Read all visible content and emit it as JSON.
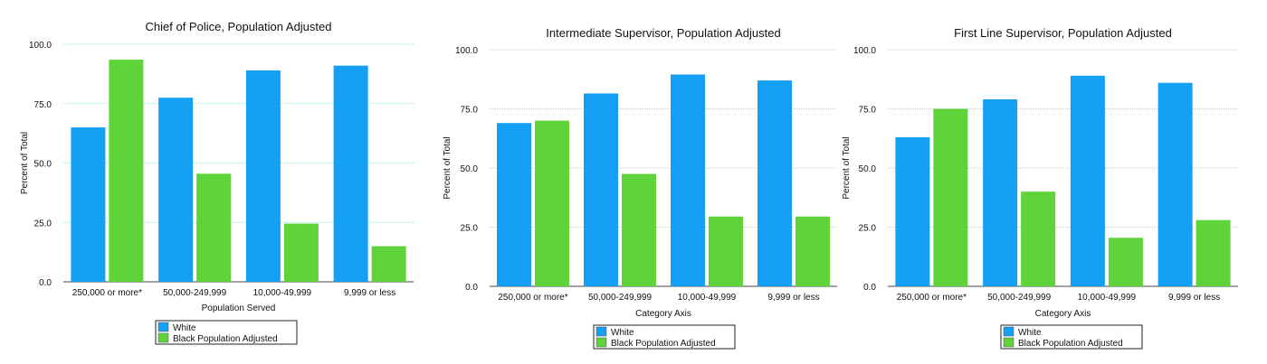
{
  "colors": {
    "white_series": "#14a0f5",
    "black_series": "#5fd43a",
    "grid": "#a8d8d0"
  },
  "chart_data": [
    {
      "type": "bar",
      "title": "Chief of Police, Population Adjusted",
      "xlabel": "Population Served",
      "ylabel": "Percent of Total",
      "ylim": [
        0,
        100
      ],
      "yticks": [
        "0.0",
        "25.0",
        "50.0",
        "75.0",
        "100.0"
      ],
      "categories": [
        "250,000 or more*",
        "50,000-249,999",
        "10,000-49,999",
        "9,999 or less"
      ],
      "series": [
        {
          "name": "White",
          "values": [
            65,
            77.5,
            89,
            91
          ]
        },
        {
          "name": "Black Population Adjusted",
          "values": [
            93.5,
            45.5,
            24.5,
            15
          ]
        }
      ],
      "grid": true,
      "legend": "bottom-center"
    },
    {
      "type": "bar",
      "title": "Intermediate Supervisor, Population Adjusted",
      "xlabel": "Category Axis",
      "ylabel": "Percent of Total",
      "ylim": [
        0,
        100
      ],
      "yticks": [
        "0.0",
        "25.0",
        "50.0",
        "75.0",
        "100.0"
      ],
      "categories": [
        "250,000 or more*",
        "50,000-249,999",
        "10,000-49,999",
        "9,999 or less"
      ],
      "series": [
        {
          "name": "White",
          "values": [
            69,
            81.5,
            89.5,
            87
          ]
        },
        {
          "name": "Black Population Adjusted",
          "values": [
            70,
            47.5,
            29.5,
            29.5
          ]
        }
      ],
      "grid": true,
      "legend": "bottom-center"
    },
    {
      "type": "bar",
      "title": "First Line Supervisor, Population Adjusted",
      "xlabel": "Category Axis",
      "ylabel": "Percent of Total",
      "ylim": [
        0,
        100
      ],
      "yticks": [
        "0.0",
        "25.0",
        "50.0",
        "75.0",
        "100.0"
      ],
      "categories": [
        "250,000 or more*",
        "50,000-249,999",
        "10,000-49,999",
        "9,999 or less"
      ],
      "series": [
        {
          "name": "White",
          "values": [
            63,
            79,
            89,
            86
          ]
        },
        {
          "name": "Black Population Adjusted",
          "values": [
            75,
            40,
            20.5,
            28
          ]
        }
      ],
      "grid": true,
      "legend": "bottom-center"
    }
  ]
}
